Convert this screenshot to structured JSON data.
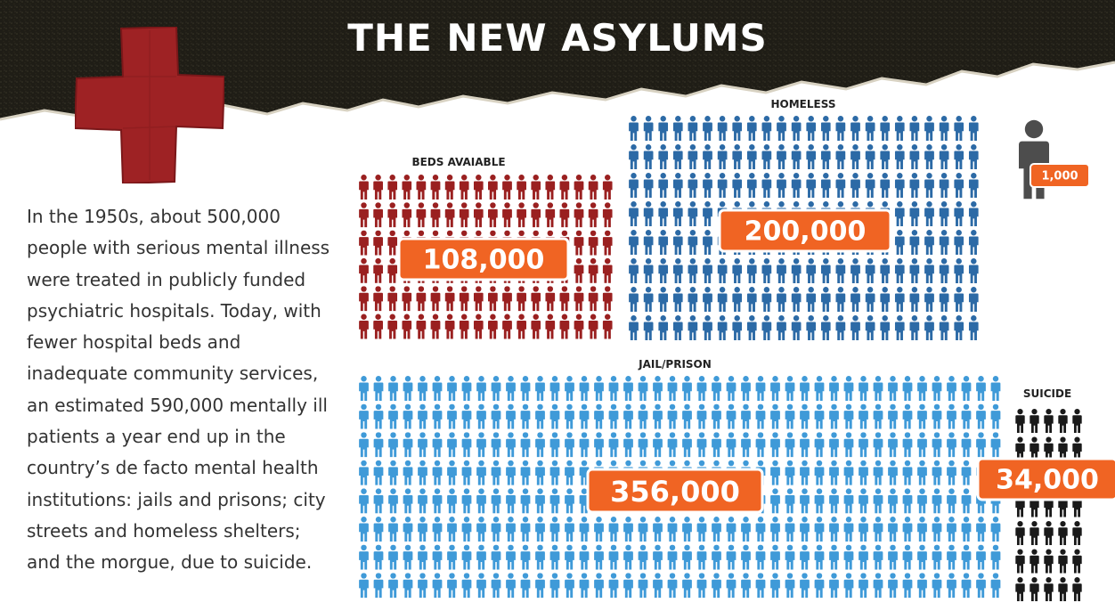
{
  "title": "THE NEW ASYLUMS",
  "description": "In the 1950s, about 500,000 people with serious mental illness were treated in publicly funded psychiatric hospitals. Today, with fewer hospital beds and inadequate community services, an estimated 590,000 mentally ill patients a year end up in the country’s de facto mental health institutions: jails and prisons; city streets and homeless shelters; and the morgue, due to suicide.",
  "icons": {
    "banner": "red-cross-bandage-icon",
    "unit": "person-icon"
  },
  "colors": {
    "banner": "#1f1d16",
    "cross": "#9e2224",
    "badge": "#f06423",
    "beds": "#9a2020",
    "homeless": "#2c6aa6",
    "jail": "#3f9ad8",
    "suicide": "#1a1a1a",
    "legend_person": "#4d4d4d"
  },
  "chart_data": {
    "type": "pictogram",
    "unit_label": "1,000",
    "series": [
      {
        "name": "BEDS AVAIABLE",
        "value": 108000,
        "value_label": "108,000",
        "color": "#9a2020"
      },
      {
        "name": "HOMELESS",
        "value": 200000,
        "value_label": "200,000",
        "color": "#2c6aa6"
      },
      {
        "name": "JAIL/PRISON",
        "value": 356000,
        "value_label": "356,000",
        "color": "#3f9ad8"
      },
      {
        "name": "SUICIDE",
        "value": 34000,
        "value_label": "34,000",
        "color": "#1a1a1a"
      }
    ]
  }
}
